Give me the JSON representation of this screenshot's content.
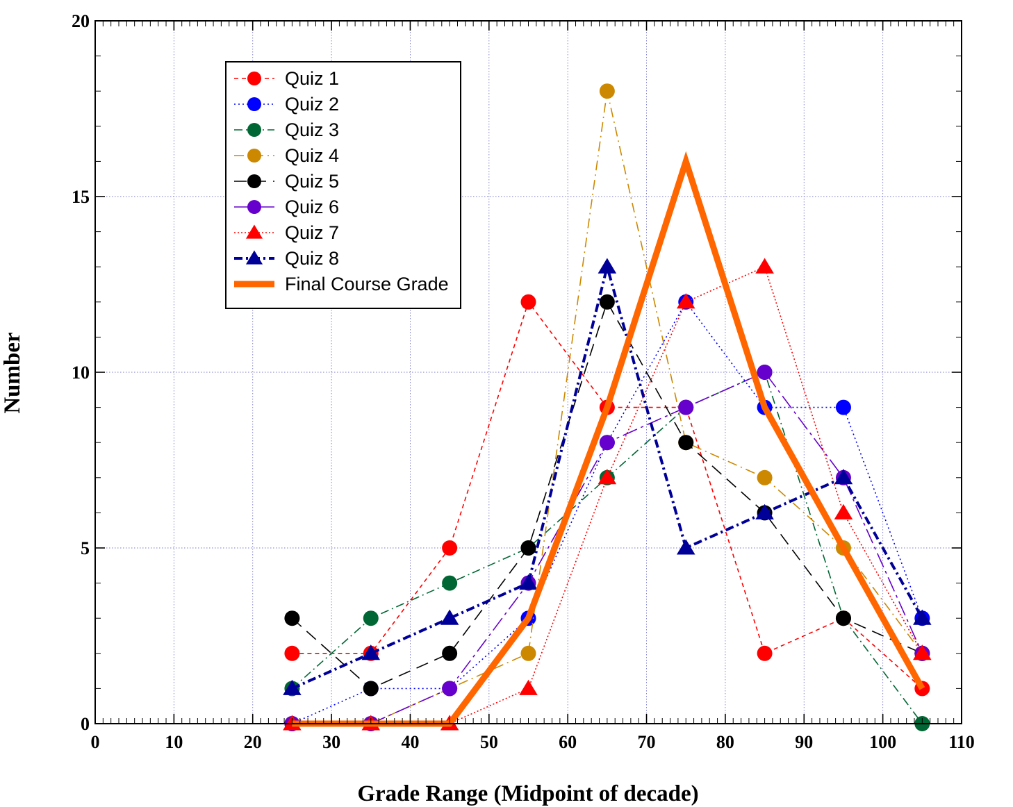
{
  "chart_data": {
    "type": "line",
    "title": "",
    "xlabel": "Grade Range (Midpoint of decade)",
    "ylabel": "Number",
    "xlim": [
      0,
      110
    ],
    "ylim": [
      0,
      20
    ],
    "x_ticks": [
      "0",
      "10",
      "20",
      "30",
      "40",
      "50",
      "60",
      "70",
      "80",
      "90",
      "100",
      "110"
    ],
    "y_ticks": [
      "0",
      "5",
      "10",
      "15",
      "20"
    ],
    "grid": true,
    "legend_position": "top-left",
    "x": [
      25,
      35,
      45,
      55,
      65,
      75,
      85,
      95,
      105
    ],
    "series": [
      {
        "name": "Quiz 1",
        "values": [
          2,
          2,
          5,
          12,
          9,
          9,
          2,
          3,
          1
        ],
        "color": "#ff0000",
        "marker": "circle",
        "dash": "6,5",
        "width": 1.6
      },
      {
        "name": "Quiz 2",
        "values": [
          0,
          1,
          1,
          3,
          8,
          12,
          9,
          9,
          3
        ],
        "color": "#0000ff",
        "marker": "circle",
        "dash": "2,4",
        "width": 1.6
      },
      {
        "name": "Quiz 3",
        "values": [
          1,
          3,
          4,
          5,
          7,
          9,
          10,
          3,
          0
        ],
        "color": "#006633",
        "marker": "circle",
        "dash": "12,5,2,5",
        "width": 1.6
      },
      {
        "name": "Quiz 4",
        "values": [
          0,
          0,
          1,
          2,
          18,
          8,
          7,
          5,
          2
        ],
        "color": "#cc8800",
        "marker": "circle",
        "dash": "14,6,2,6",
        "width": 1.6
      },
      {
        "name": "Quiz 5",
        "values": [
          3,
          1,
          2,
          5,
          12,
          8,
          6,
          3,
          2
        ],
        "color": "#000000",
        "marker": "circle",
        "dash": "18,10",
        "width": 1.6
      },
      {
        "name": "Quiz 6",
        "values": [
          0,
          0,
          1,
          4,
          8,
          9,
          10,
          7,
          2
        ],
        "color": "#6600cc",
        "marker": "circle",
        "dash": "22,6,4,6",
        "width": 1.6
      },
      {
        "name": "Quiz 7",
        "values": [
          0,
          0,
          0,
          1,
          7,
          12,
          13,
          6,
          2
        ],
        "color": "#ff0000",
        "marker": "triangle",
        "dash": "2,3",
        "width": 1.6
      },
      {
        "name": "Quiz 8",
        "values": [
          1,
          2,
          3,
          4,
          13,
          5,
          6,
          7,
          3
        ],
        "color": "#000099",
        "marker": "triangle",
        "dash": "12,5,3,5",
        "width": 4
      },
      {
        "name": "Final Course Grade",
        "values": [
          0,
          0,
          0,
          3,
          9,
          16,
          9,
          5,
          1
        ],
        "color": "#ff6600",
        "marker": "none",
        "dash": "",
        "width": 9
      }
    ]
  }
}
